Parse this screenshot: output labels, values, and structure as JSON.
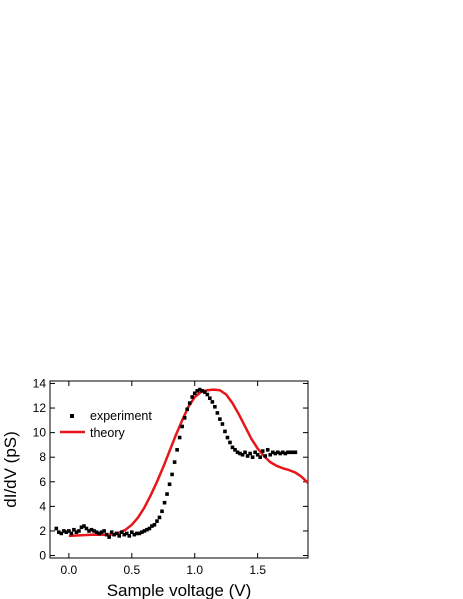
{
  "chart_data": {
    "type": "scatter",
    "xlabel": "Sample voltage (V)",
    "ylabel": "dI/dV (pS)",
    "xlim": [
      -0.15,
      1.9
    ],
    "ylim": [
      -0.2,
      14.2
    ],
    "x_ticks": [
      0.0,
      0.5,
      1.0,
      1.5
    ],
    "x_tick_labels": [
      "0.0",
      "0.5",
      "1.0",
      "1.5"
    ],
    "y_ticks": [
      0,
      2,
      4,
      6,
      8,
      10,
      12,
      14
    ],
    "y_tick_labels": [
      "0",
      "2",
      "4",
      "6",
      "8",
      "10",
      "12",
      "14"
    ],
    "grid": false,
    "legend": "upper-left",
    "colors": {
      "experiment": "#000000",
      "theory": "#e8161b"
    },
    "series": [
      {
        "name": "experiment",
        "type": "scatter",
        "x": [
          -0.1,
          -0.08,
          -0.06,
          -0.04,
          -0.02,
          0.0,
          0.02,
          0.04,
          0.06,
          0.08,
          0.1,
          0.12,
          0.14,
          0.16,
          0.18,
          0.2,
          0.22,
          0.24,
          0.26,
          0.28,
          0.3,
          0.32,
          0.34,
          0.36,
          0.38,
          0.4,
          0.42,
          0.44,
          0.46,
          0.48,
          0.5,
          0.52,
          0.54,
          0.56,
          0.58,
          0.6,
          0.62,
          0.64,
          0.66,
          0.68,
          0.7,
          0.72,
          0.74,
          0.76,
          0.78,
          0.8,
          0.82,
          0.84,
          0.86,
          0.88,
          0.9,
          0.92,
          0.94,
          0.96,
          0.98,
          1.0,
          1.02,
          1.04,
          1.06,
          1.08,
          1.1,
          1.12,
          1.14,
          1.16,
          1.18,
          1.2,
          1.22,
          1.24,
          1.26,
          1.28,
          1.3,
          1.32,
          1.34,
          1.36,
          1.38,
          1.4,
          1.42,
          1.44,
          1.46,
          1.48,
          1.5,
          1.52,
          1.54,
          1.56,
          1.58,
          1.6,
          1.62,
          1.64,
          1.66,
          1.68,
          1.7,
          1.72,
          1.74,
          1.76,
          1.78,
          1.8
        ],
        "y": [
          2.2,
          1.9,
          1.8,
          2.0,
          1.9,
          2.0,
          1.8,
          2.1,
          1.9,
          2.0,
          2.3,
          2.4,
          2.2,
          2.0,
          2.1,
          2.0,
          1.9,
          1.8,
          1.9,
          2.0,
          1.7,
          1.5,
          1.9,
          1.7,
          1.8,
          1.6,
          1.9,
          1.7,
          1.8,
          1.6,
          1.9,
          1.7,
          1.8,
          1.8,
          1.9,
          2.0,
          2.1,
          2.2,
          2.4,
          2.5,
          2.8,
          3.1,
          3.6,
          4.3,
          5.0,
          5.8,
          6.6,
          7.6,
          8.6,
          9.6,
          10.5,
          11.2,
          11.9,
          12.4,
          12.9,
          13.2,
          13.4,
          13.5,
          13.4,
          13.3,
          13.1,
          12.8,
          12.5,
          12.1,
          11.6,
          11.1,
          10.7,
          10.1,
          9.6,
          9.2,
          8.8,
          8.6,
          8.4,
          8.3,
          8.2,
          8.4,
          8.1,
          8.3,
          8.0,
          8.4,
          8.2,
          8.0,
          8.5,
          8.1,
          8.6,
          8.2,
          8.4,
          8.3,
          8.4,
          8.3,
          8.4,
          8.3,
          8.4,
          8.4,
          8.4,
          8.4
        ]
      },
      {
        "name": "theory",
        "type": "line",
        "x": [
          0.0,
          0.1,
          0.2,
          0.3,
          0.35,
          0.4,
          0.45,
          0.5,
          0.55,
          0.6,
          0.65,
          0.7,
          0.75,
          0.8,
          0.85,
          0.9,
          0.95,
          1.0,
          1.05,
          1.1,
          1.15,
          1.2,
          1.25,
          1.3,
          1.35,
          1.4,
          1.45,
          1.5,
          1.55,
          1.6,
          1.65,
          1.7,
          1.75,
          1.8,
          1.85,
          1.9
        ],
        "y": [
          1.6,
          1.65,
          1.7,
          1.68,
          1.72,
          1.85,
          2.1,
          2.5,
          3.1,
          3.9,
          4.9,
          6.0,
          7.2,
          8.5,
          9.8,
          11.0,
          12.1,
          12.9,
          13.3,
          13.45,
          13.5,
          13.45,
          13.1,
          12.4,
          11.5,
          10.5,
          9.5,
          8.7,
          8.1,
          7.6,
          7.3,
          7.1,
          6.95,
          6.75,
          6.4,
          5.9
        ]
      }
    ]
  }
}
